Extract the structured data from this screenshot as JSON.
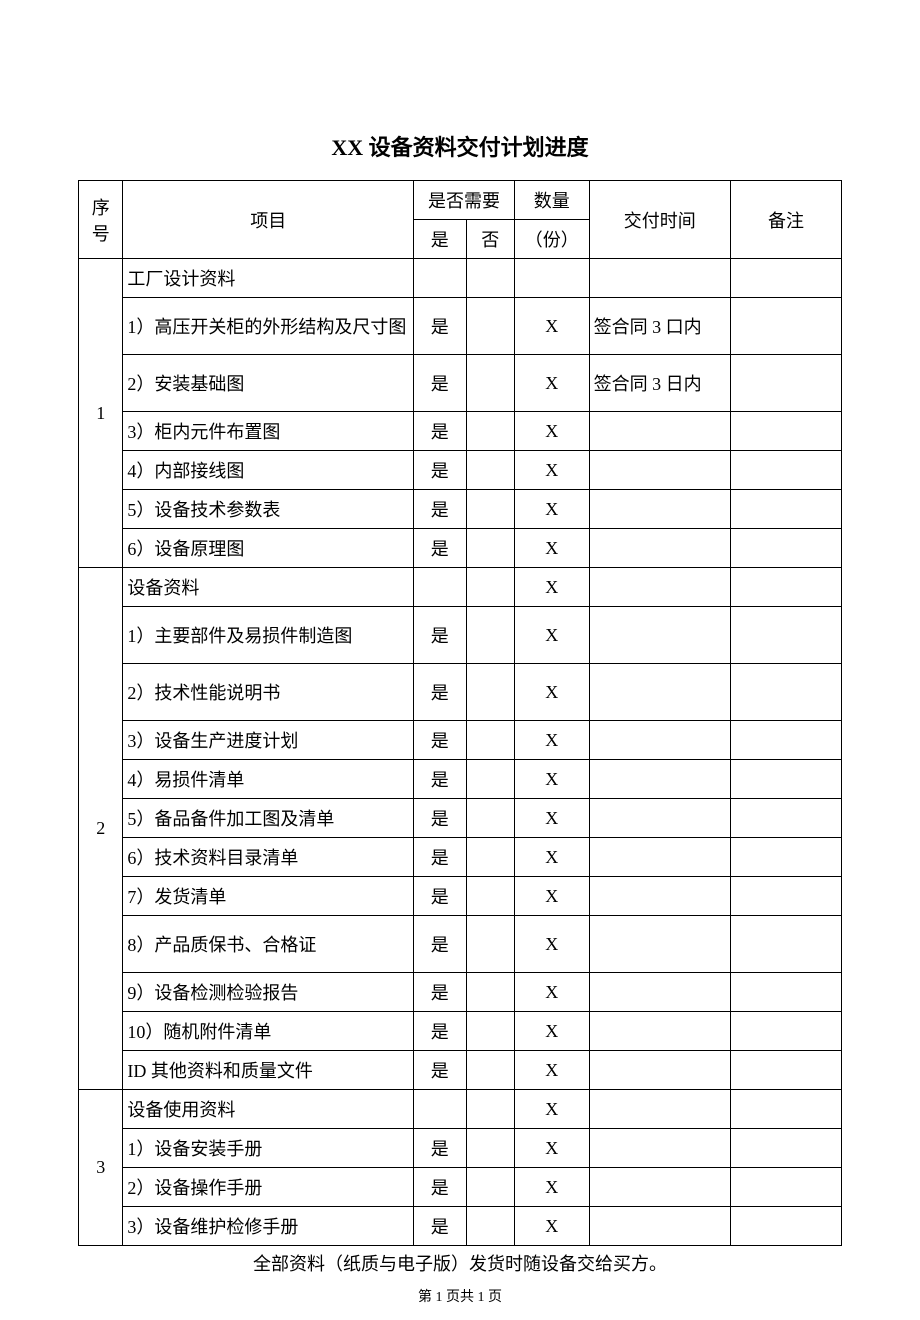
{
  "title": "XX 设备资料交付计划进度",
  "columns": {
    "seq": "序号",
    "item": "项目",
    "need": "是否需要",
    "yes": "是",
    "no": "否",
    "qty_top": "数量",
    "qty_sub": "（份）",
    "time": "交付时间",
    "note": "备注"
  },
  "groups": [
    {
      "seq": "1",
      "rows": [
        {
          "item": "工厂设计资料",
          "yes": "",
          "no": "",
          "qty": "",
          "time": "",
          "tall": false
        },
        {
          "item": "1）高压开关柜的外形结构及尺寸图",
          "yes": "是",
          "no": "",
          "qty": "X",
          "time": "签合同 3 口内",
          "tall": true
        },
        {
          "item": "2）安装基础图",
          "yes": "是",
          "no": "",
          "qty": "X",
          "time": "签合同 3 日内",
          "tall": true
        },
        {
          "item": "3）柜内元件布置图",
          "yes": "是",
          "no": "",
          "qty": "X",
          "time": "",
          "tall": false
        },
        {
          "item": "4）内部接线图",
          "yes": "是",
          "no": "",
          "qty": "X",
          "time": "",
          "tall": false
        },
        {
          "item": "5）设备技术参数表",
          "yes": "是",
          "no": "",
          "qty": "X",
          "time": "",
          "tall": false
        },
        {
          "item": "6）设备原理图",
          "yes": "是",
          "no": "",
          "qty": "X",
          "time": "",
          "tall": false
        }
      ]
    },
    {
      "seq": "2",
      "rows": [
        {
          "item": "设备资料",
          "yes": "",
          "no": "",
          "qty": "X",
          "time": "",
          "tall": false
        },
        {
          "item": "1）主要部件及易损件制造图",
          "yes": "是",
          "no": "",
          "qty": "X",
          "time": "",
          "tall": true
        },
        {
          "item": "2）技术性能说明书",
          "yes": "是",
          "no": "",
          "qty": "X",
          "time": "",
          "tall": true
        },
        {
          "item": "3）设备生产进度计划",
          "yes": "是",
          "no": "",
          "qty": "X",
          "time": "",
          "tall": false
        },
        {
          "item": "4）易损件清单",
          "yes": "是",
          "no": "",
          "qty": "X",
          "time": "",
          "tall": false
        },
        {
          "item": "5）备品备件加工图及清单",
          "yes": "是",
          "no": "",
          "qty": "X",
          "time": "",
          "tall": false
        },
        {
          "item": "6）技术资料目录清单",
          "yes": "是",
          "no": "",
          "qty": "X",
          "time": "",
          "tall": false
        },
        {
          "item": "7）发货清单",
          "yes": "是",
          "no": "",
          "qty": "X",
          "time": "",
          "tall": false
        },
        {
          "item": "8）产品质保书、合格证",
          "yes": "是",
          "no": "",
          "qty": "X",
          "time": "",
          "tall": true
        },
        {
          "item": "9）设备检测检验报告",
          "yes": "是",
          "no": "",
          "qty": "X",
          "time": "",
          "tall": false
        },
        {
          "item": "10）随机附件清单",
          "yes": "是",
          "no": "",
          "qty": "X",
          "time": "",
          "tall": false
        },
        {
          "item": "ID 其他资料和质量文件",
          "yes": "是",
          "no": "",
          "qty": "X",
          "time": "",
          "tall": false
        }
      ]
    },
    {
      "seq": "3",
      "rows": [
        {
          "item": "设备使用资料",
          "yes": "",
          "no": "",
          "qty": "X",
          "time": "",
          "tall": false
        },
        {
          "item": "1）设备安装手册",
          "yes": "是",
          "no": "",
          "qty": "X",
          "time": "",
          "tall": false
        },
        {
          "item": "2）设备操作手册",
          "yes": "是",
          "no": "",
          "qty": "X",
          "time": "",
          "tall": false
        },
        {
          "item": "3）设备维护检修手册",
          "yes": "是",
          "no": "",
          "qty": "X",
          "time": "",
          "tall": false
        }
      ]
    }
  ],
  "footnote": "全部资料（纸质与电子版）发货时随设备交给买方。",
  "page_number": "第 1 页共 1 页"
}
